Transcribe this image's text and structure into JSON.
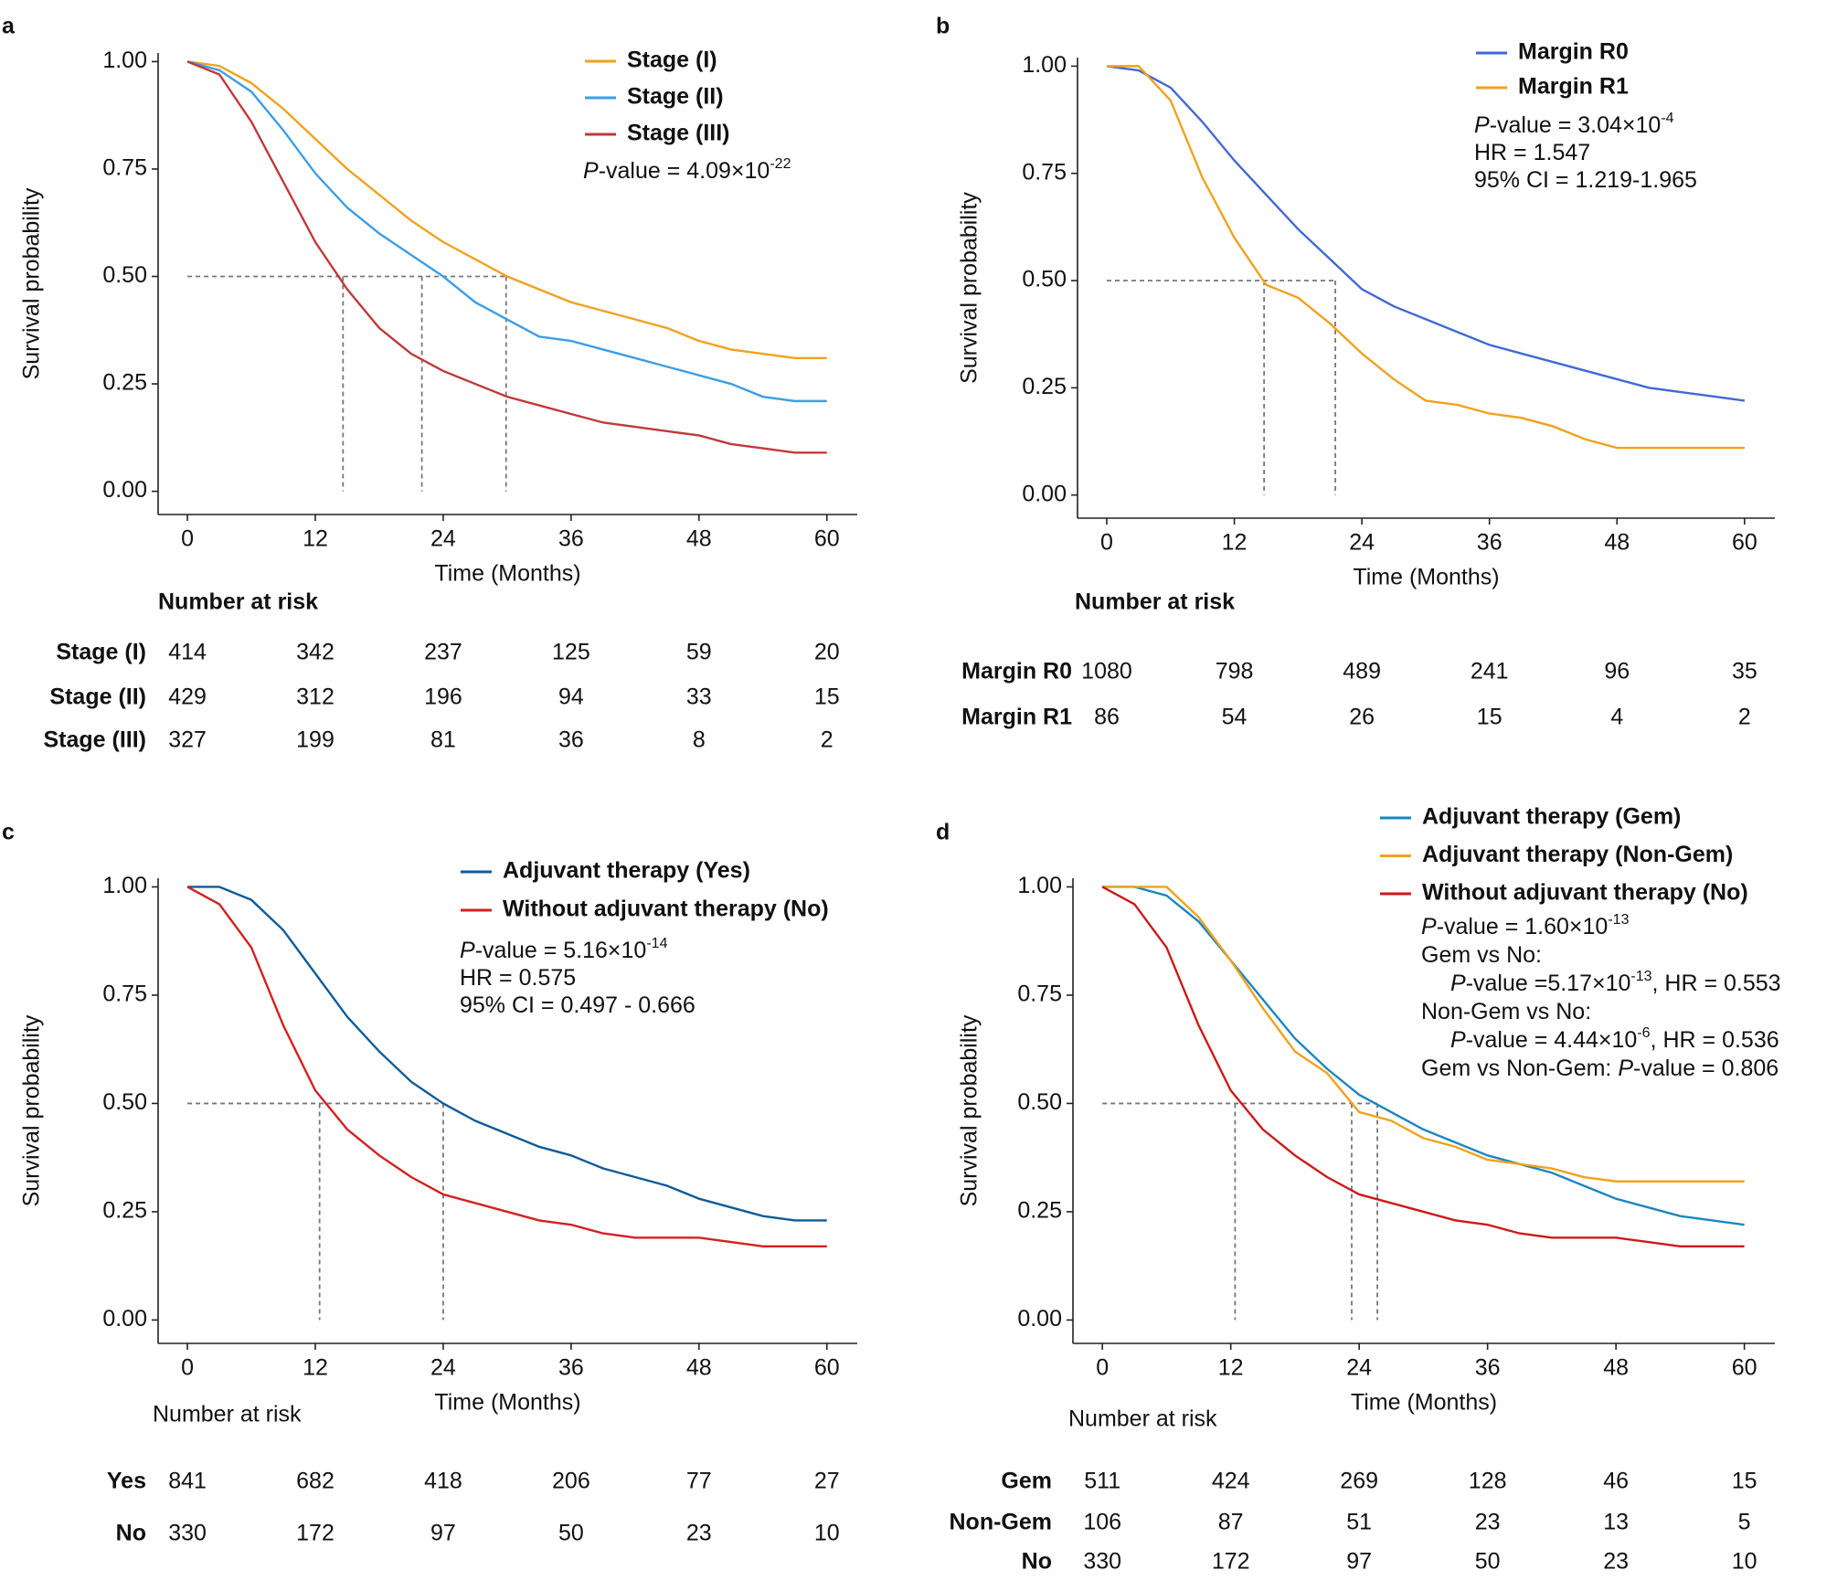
{
  "chart_data": [
    {
      "type": "line",
      "label": "a",
      "x_label": "Time (Months)",
      "y_label": "Survival probability",
      "x": [
        0,
        3,
        6,
        9,
        12,
        15,
        18,
        21,
        24,
        27,
        30,
        33,
        36,
        39,
        42,
        45,
        48,
        51,
        54,
        57,
        60
      ],
      "xlim": [
        -2.75,
        62.85
      ],
      "xticks": [
        0,
        12,
        24,
        36,
        48,
        60
      ],
      "ylim": [
        -0.054,
        1.02
      ],
      "yticks": [
        {
          "value": 0,
          "label": "0.00"
        },
        {
          "value": 0.25,
          "label": "0.25"
        },
        {
          "value": 0.5,
          "label": "0.50"
        },
        {
          "value": 0.75,
          "label": "0.75"
        },
        {
          "value": 1,
          "label": "1.00"
        }
      ],
      "legend": "top-right",
      "series": [
        {
          "name": "Stage (I)",
          "color": "#f0a21e",
          "values": [
            1,
            0.99,
            0.95,
            0.89,
            0.82,
            0.75,
            0.69,
            0.63,
            0.58,
            0.54,
            0.5,
            0.47,
            0.44,
            0.42,
            0.4,
            0.38,
            0.35,
            0.33,
            0.32,
            0.31,
            0.31
          ]
        },
        {
          "name": "Stage (II)",
          "color": "#3d9ee6",
          "values": [
            1,
            0.98,
            0.93,
            0.84,
            0.74,
            0.66,
            0.6,
            0.55,
            0.5,
            0.44,
            0.4,
            0.36,
            0.35,
            0.33,
            0.31,
            0.29,
            0.27,
            0.25,
            0.22,
            0.21,
            0.21
          ]
        },
        {
          "name": "Stage (III)",
          "color": "#c0393b",
          "values": [
            1,
            0.97,
            0.86,
            0.72,
            0.58,
            0.47,
            0.38,
            0.32,
            0.28,
            0.25,
            0.22,
            0.2,
            0.18,
            0.16,
            0.15,
            0.14,
            0.13,
            0.11,
            0.1,
            0.09,
            0.09
          ]
        }
      ],
      "median_lines": {
        "y": 0.5,
        "x": [
          29.9,
          22.0,
          14.6
        ]
      },
      "annotations": [
        {
          "parts": [
            {
              "text": "P",
              "style": "italic"
            },
            {
              "text": "-value = 4.09×10"
            },
            {
              "text": "-22",
              "style": "sup"
            }
          ]
        }
      ],
      "risk_table": {
        "title": "Number at risk",
        "title_weight": "bold",
        "rows": [
          {
            "name": "Stage (I)",
            "color": "#f0a21e",
            "values": [
              414,
              342,
              237,
              125,
              59,
              20
            ]
          },
          {
            "name": "Stage (II)",
            "color": "#3d9ee6",
            "values": [
              429,
              312,
              196,
              94,
              33,
              15
            ]
          },
          {
            "name": "Stage (III)",
            "color": "#c0393b",
            "values": [
              327,
              199,
              81,
              36,
              8,
              2
            ]
          }
        ]
      }
    },
    {
      "type": "line",
      "label": "b",
      "x_label": "Time (Months)",
      "y_label": "Survival probability",
      "x": [
        0,
        3,
        6,
        9,
        12,
        15,
        18,
        21,
        24,
        27,
        30,
        33,
        36,
        39,
        42,
        45,
        48,
        51,
        54,
        57,
        60
      ],
      "xlim": [
        -2.75,
        62.85
      ],
      "xticks": [
        0,
        12,
        24,
        36,
        48,
        60
      ],
      "ylim": [
        -0.054,
        1.02
      ],
      "yticks": [
        {
          "value": 0,
          "label": "0.00"
        },
        {
          "value": 0.25,
          "label": "0.25"
        },
        {
          "value": 0.5,
          "label": "0.50"
        },
        {
          "value": 0.75,
          "label": "0.75"
        },
        {
          "value": 1,
          "label": "1.00"
        }
      ],
      "legend": "top-right",
      "series": [
        {
          "name": "Margin R0",
          "color": "#4169d4",
          "values": [
            1,
            0.99,
            0.95,
            0.87,
            0.78,
            0.7,
            0.62,
            0.55,
            0.48,
            0.44,
            0.41,
            0.38,
            0.35,
            0.33,
            0.31,
            0.29,
            0.27,
            0.25,
            0.24,
            0.23,
            0.22
          ]
        },
        {
          "name": "Margin R1",
          "color": "#f0a21e",
          "values": [
            1,
            1,
            0.92,
            0.74,
            0.6,
            0.49,
            0.46,
            0.4,
            0.33,
            0.27,
            0.22,
            0.21,
            0.19,
            0.18,
            0.16,
            0.13,
            0.11,
            0.11,
            0.11,
            0.11,
            0.11
          ]
        }
      ],
      "median_lines": {
        "y": 0.5,
        "x": [
          21.5,
          14.8
        ]
      },
      "annotations": [
        {
          "parts": [
            {
              "text": "P",
              "style": "italic"
            },
            {
              "text": "-value = 3.04×10"
            },
            {
              "text": "-4",
              "style": "sup"
            }
          ]
        },
        {
          "parts": [
            {
              "text": "HR = 1.547"
            }
          ]
        },
        {
          "parts": [
            {
              "text": "95% CI = 1.219-1.965"
            }
          ]
        }
      ],
      "risk_table": {
        "title": "Number at risk",
        "title_weight": "bold",
        "rows": [
          {
            "name": "Margin R0",
            "color": "#4169d4",
            "values": [
              1080,
              798,
              489,
              241,
              96,
              35
            ]
          },
          {
            "name": "Margin R1",
            "color": "#f0a21e",
            "values": [
              86,
              54,
              26,
              15,
              4,
              2
            ]
          }
        ]
      }
    },
    {
      "type": "line",
      "label": "c",
      "x_label": "Time (Months)",
      "y_label": "Survival probability",
      "x": [
        0,
        3,
        6,
        9,
        12,
        15,
        18,
        21,
        24,
        27,
        30,
        33,
        36,
        39,
        42,
        45,
        48,
        51,
        54,
        57,
        60
      ],
      "xlim": [
        -2.75,
        62.85
      ],
      "xticks": [
        0,
        12,
        24,
        36,
        48,
        60
      ],
      "ylim": [
        -0.054,
        1.02
      ],
      "yticks": [
        {
          "value": 0,
          "label": "0.00"
        },
        {
          "value": 0.25,
          "label": "0.25"
        },
        {
          "value": 0.5,
          "label": "0.50"
        },
        {
          "value": 0.75,
          "label": "0.75"
        },
        {
          "value": 1,
          "label": "1.00"
        }
      ],
      "legend": "top-right",
      "series": [
        {
          "name": "Adjuvant therapy (Yes)",
          "color": "#0f5c99",
          "values": [
            1,
            1,
            0.97,
            0.9,
            0.8,
            0.7,
            0.62,
            0.55,
            0.5,
            0.46,
            0.43,
            0.4,
            0.38,
            0.35,
            0.33,
            0.31,
            0.28,
            0.26,
            0.24,
            0.23,
            0.23
          ]
        },
        {
          "name": "Without adjuvant therapy (No)",
          "color": "#d42020",
          "values": [
            1,
            0.96,
            0.86,
            0.68,
            0.53,
            0.44,
            0.38,
            0.33,
            0.29,
            0.27,
            0.25,
            0.23,
            0.22,
            0.2,
            0.19,
            0.19,
            0.19,
            0.18,
            0.17,
            0.17,
            0.17
          ]
        }
      ],
      "median_lines": {
        "y": 0.5,
        "x": [
          24.0,
          12.4
        ]
      },
      "annotations": [
        {
          "parts": [
            {
              "text": "P",
              "style": "italic"
            },
            {
              "text": "-value = 5.16×10"
            },
            {
              "text": "-14",
              "style": "sup"
            }
          ]
        },
        {
          "parts": [
            {
              "text": "HR = 0.575"
            }
          ]
        },
        {
          "parts": [
            {
              "text": "95% CI = 0.497 - 0.666"
            }
          ]
        }
      ],
      "risk_table": {
        "title": "Number at risk",
        "title_weight": "normal",
        "rows": [
          {
            "name": "Yes",
            "color": "#0f5c99",
            "values": [
              841,
              682,
              418,
              206,
              77,
              27
            ]
          },
          {
            "name": "No",
            "color": "#d42020",
            "values": [
              330,
              172,
              97,
              50,
              23,
              10
            ]
          }
        ]
      }
    },
    {
      "type": "line",
      "label": "d",
      "x_label": "Time (Months)",
      "y_label": "Survival probability",
      "x": [
        0,
        3,
        6,
        9,
        12,
        15,
        18,
        21,
        24,
        27,
        30,
        33,
        36,
        39,
        42,
        45,
        48,
        51,
        54,
        57,
        60
      ],
      "xlim": [
        -2.75,
        62.85
      ],
      "xticks": [
        0,
        12,
        24,
        36,
        48,
        60
      ],
      "ylim": [
        -0.054,
        1.02
      ],
      "yticks": [
        {
          "value": 0,
          "label": "0.00"
        },
        {
          "value": 0.25,
          "label": "0.25"
        },
        {
          "value": 0.5,
          "label": "0.50"
        },
        {
          "value": 0.75,
          "label": "0.75"
        },
        {
          "value": 1,
          "label": "1.00"
        }
      ],
      "legend": "top-right",
      "series": [
        {
          "name": "Adjuvant therapy (Gem)",
          "color": "#1b87c0",
          "values": [
            1,
            1,
            0.98,
            0.92,
            0.83,
            0.74,
            0.65,
            0.58,
            0.52,
            0.48,
            0.44,
            0.41,
            0.38,
            0.36,
            0.34,
            0.31,
            0.28,
            0.26,
            0.24,
            0.23,
            0.22
          ]
        },
        {
          "name": "Adjuvant therapy (Non-Gem)",
          "color": "#f0a21e",
          "values": [
            1,
            1,
            1,
            0.93,
            0.83,
            0.72,
            0.62,
            0.57,
            0.48,
            0.46,
            0.42,
            0.4,
            0.37,
            0.36,
            0.35,
            0.33,
            0.32,
            0.32,
            0.32,
            0.32,
            0.32
          ]
        },
        {
          "name": "Without adjuvant therapy (No)",
          "color": "#cc1a1a",
          "values": [
            1,
            0.96,
            0.86,
            0.68,
            0.53,
            0.44,
            0.38,
            0.33,
            0.29,
            0.27,
            0.25,
            0.23,
            0.22,
            0.2,
            0.19,
            0.19,
            0.19,
            0.18,
            0.17,
            0.17,
            0.17
          ]
        }
      ],
      "median_lines": {
        "y": 0.5,
        "x": [
          25.7,
          23.3,
          12.4
        ]
      },
      "annotations": [
        {
          "parts": [
            {
              "text": "P",
              "style": "italic"
            },
            {
              "text": "-value = 1.60×10"
            },
            {
              "text": "-13",
              "style": "sup"
            }
          ]
        },
        {
          "parts": [
            {
              "text": "Gem vs No:"
            }
          ]
        },
        {
          "indent": true,
          "parts": [
            {
              "text": "P",
              "style": "italic"
            },
            {
              "text": "-value =5.17×10"
            },
            {
              "text": "-13",
              "style": "sup"
            },
            {
              "text": ", HR = 0.553"
            }
          ]
        },
        {
          "parts": [
            {
              "text": "Non-Gem vs No:"
            }
          ]
        },
        {
          "indent": true,
          "parts": [
            {
              "text": "P",
              "style": "italic"
            },
            {
              "text": "-value = 4.44×10"
            },
            {
              "text": "-6",
              "style": "sup"
            },
            {
              "text": ", HR = 0.536"
            }
          ]
        },
        {
          "parts": [
            {
              "text": "Gem vs Non-Gem: "
            },
            {
              "text": "P",
              "style": "italic"
            },
            {
              "text": "-value = 0.806"
            }
          ]
        }
      ],
      "risk_table": {
        "title": "Number at risk",
        "title_weight": "normal",
        "rows": [
          {
            "name": "Gem",
            "color": "#1b87c0",
            "values": [
              511,
              424,
              269,
              128,
              46,
              15
            ]
          },
          {
            "name": "Non-Gem",
            "color": "#f0a21e",
            "values": [
              106,
              87,
              51,
              23,
              13,
              5
            ]
          },
          {
            "name": "No",
            "color": "#cc1a1a",
            "values": [
              330,
              172,
              97,
              50,
              23,
              10
            ]
          }
        ]
      }
    }
  ]
}
